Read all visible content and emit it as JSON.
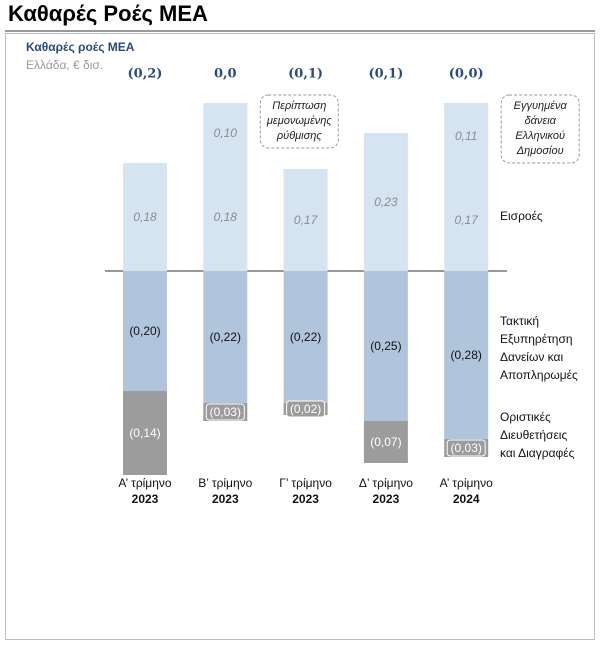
{
  "header": {
    "title": "Καθαρές Ροές ΜΕΑ"
  },
  "chart_data": {
    "type": "stacked-bar",
    "title": "Καθαρές ροές ΜΕΑ",
    "subtitle": "Ελλάδα, € δισ.",
    "categories": [
      [
        "Α’ τρίμηνο",
        "2023"
      ],
      [
        "Β’ τρίμηνο",
        "2023"
      ],
      [
        "Γ’ τρίμηνο",
        "2023"
      ],
      [
        "Δ’ τρίμηνο",
        "2023"
      ],
      [
        "Α’ τρίμηνο",
        "2024"
      ]
    ],
    "ylim": [
      -0.33,
      0.3
    ],
    "series": [
      {
        "name": [
          "Εισροές"
        ],
        "color": "#d6e3f0",
        "values": [
          0.18,
          0.18,
          0.17,
          0.23,
          0.17
        ],
        "value_labels": [
          "0,18",
          "0,18",
          "0,17",
          "0,23",
          "0,17"
        ]
      },
      {
        "color": "#d6e3f0",
        "values": [
          null,
          0.1,
          null,
          null,
          0.11
        ],
        "value_labels": [
          null,
          "0,10",
          null,
          null,
          "0,11"
        ]
      },
      {
        "name": [
          "Τακτική",
          "Εξυπηρέτηση",
          "Δανείων και",
          "Αποπληρωμές"
        ],
        "color": "#b0c5dc",
        "values": [
          -0.2,
          -0.22,
          -0.22,
          -0.25,
          -0.28
        ],
        "value_labels": [
          "(0,20)",
          "(0,22)",
          "(0,22)",
          "(0,25)",
          "(0,28)"
        ]
      },
      {
        "name": [
          "Οριστικές",
          "Διευθετήσεις",
          "και Διαγραφές"
        ],
        "color": "#9c9c9c",
        "values": [
          -0.14,
          -0.03,
          -0.02,
          -0.07,
          -0.03
        ],
        "value_labels": [
          "(0,14)",
          "(0,03)",
          "(0,02)",
          "(0,07)",
          "(0,03)"
        ]
      }
    ],
    "totals": {
      "values": [
        -0.16,
        0.03,
        -0.07,
        -0.09,
        -0.03
      ],
      "value_labels": [
        "(0,2)",
        "0,0",
        "(0,1)",
        "(0,1)",
        "(0,0)"
      ]
    },
    "annotations": [
      {
        "index": 1,
        "lines": [
          "Περίπτωση",
          "μεμονωμένης",
          "ρύθμισης"
        ]
      },
      {
        "index": 4,
        "lines": [
          "Εγγυημένα",
          "δάνεια",
          "Ελληνικού",
          "Δημοσίου"
        ]
      }
    ]
  }
}
